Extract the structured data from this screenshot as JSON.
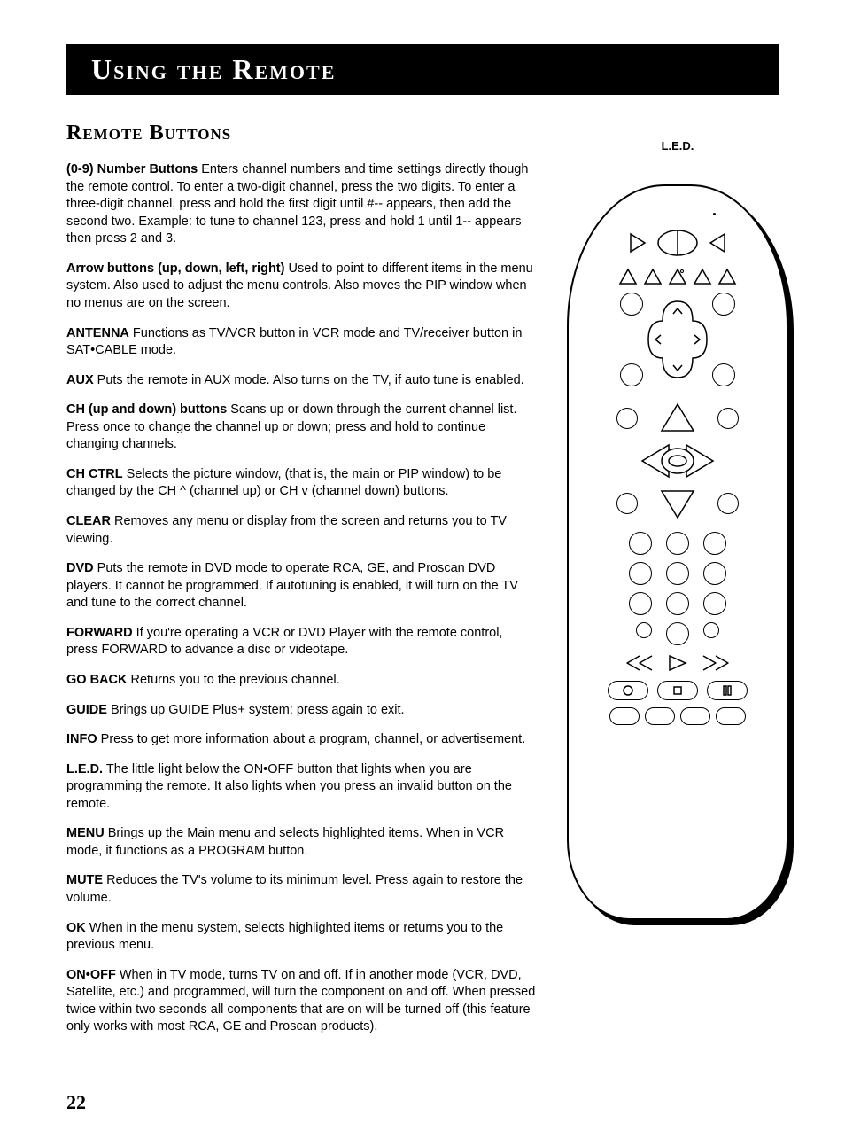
{
  "page_number": "22",
  "title": "Using the Remote",
  "section_heading": "Remote Buttons",
  "diagram_label": "L.E.D.",
  "entries": [
    {
      "term": "(0-9) Number Buttons",
      "desc": "   Enters channel numbers and time settings directly though the remote control. To enter a two-digit channel, press the two digits. To enter a three-digit channel, press and hold the first digit until #-- appears, then add the second two. Example: to tune to channel 123, press and hold 1 until 1-- appears then press 2 and 3."
    },
    {
      "term": "Arrow buttons (up, down, left, right)",
      "desc": "  Used to point to different items in the menu system. Also used to adjust the menu controls. Also moves the PIP window when no menus are on the screen."
    },
    {
      "term": "ANTENNA",
      "desc": "   Functions as TV/VCR button in VCR mode and TV/receiver button in SAT•CABLE mode."
    },
    {
      "term": "AUX",
      "desc": "  Puts the remote in AUX mode. Also turns on the TV, if auto tune is enabled."
    },
    {
      "term": "CH (up and down) buttons",
      "desc": "   Scans up or down through the current channel list. Press once to change the channel up or down; press and hold to continue changing channels."
    },
    {
      "term": "CH CTRL",
      "desc": "   Selects the picture window, (that is, the main or PIP window) to be changed by the CH ^ (channel up) or CH v (channel down) buttons."
    },
    {
      "term": "CLEAR",
      "desc": "   Removes any menu or display from the screen and returns you to TV viewing."
    },
    {
      "term": "DVD",
      "desc": "   Puts the remote in DVD mode to operate RCA, GE, and Proscan DVD players. It cannot be programmed. If autotuning is enabled, it will turn on the TV and tune to the correct channel."
    },
    {
      "term": "FORWARD",
      "desc": "   If you're operating a VCR or DVD Player with the remote control, press FORWARD to advance a disc or videotape."
    },
    {
      "term": "GO BACK",
      "desc": "  Returns you to the previous channel."
    },
    {
      "term": "GUIDE",
      "desc": "  Brings up GUIDE Plus+ system; press again to exit."
    },
    {
      "term": "INFO",
      "desc": "  Press to get more information about a program, channel, or advertisement."
    },
    {
      "term": "L.E.D.",
      "desc": "  The little light below the ON•OFF button that lights when you are programming the remote. It also lights when you press an invalid button on the remote."
    },
    {
      "term": "MENU",
      "desc": "  Brings up the Main menu and selects highlighted items. When in VCR mode, it functions as a PROGRAM button."
    },
    {
      "term": "MUTE",
      "desc": "  Reduces the TV's volume to its minimum level. Press again to restore the volume."
    },
    {
      "term": "OK",
      "desc": "  When in the menu system, selects highlighted items or returns you to the previous menu."
    },
    {
      "term": "ON•OFF",
      "desc": "  When in TV mode, turns TV on and off. If in another mode (VCR, DVD, Satellite, etc.) and programmed, will turn the component on and off. When pressed twice within two seconds all components that are on will be turned off (this feature only works with most RCA, GE and Proscan products)."
    }
  ]
}
